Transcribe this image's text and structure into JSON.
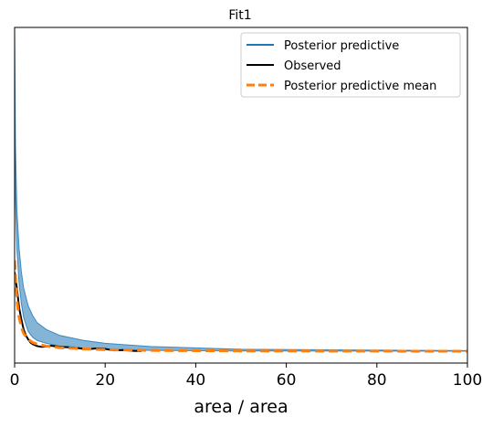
{
  "chart_data": {
    "type": "line",
    "title": "Fit1",
    "xlabel": "area / area",
    "ylabel": "",
    "xlim": [
      0,
      100
    ],
    "ylim": [
      -0.03,
      0.82
    ],
    "x_ticks": [
      "0",
      "20",
      "40",
      "60",
      "80",
      "100"
    ],
    "x_tick_values": [
      0,
      20,
      40,
      60,
      80,
      100
    ],
    "y_ticks_visible": false,
    "grid": false,
    "legend": {
      "placement": "top-right",
      "entries": [
        {
          "label": "Posterior predictive",
          "color": "#1f77b4",
          "style": "solid"
        },
        {
          "label": "Observed",
          "color": "#000000",
          "style": "solid"
        },
        {
          "label": "Posterior predictive mean",
          "color": "#ff7f0e",
          "style": "dashed"
        }
      ]
    },
    "series": [
      {
        "name": "Posterior predictive",
        "color": "#1f77b4",
        "style": "band",
        "x": [
          0,
          0.2,
          0.5,
          1,
          1.5,
          2,
          3,
          4,
          5,
          7,
          10,
          15,
          20,
          30,
          50,
          100
        ],
        "lower": [
          0.55,
          0.38,
          0.26,
          0.17,
          0.12,
          0.085,
          0.05,
          0.035,
          0.027,
          0.02,
          0.013,
          0.008,
          0.005,
          0.002,
          0.0006,
          0.0
        ],
        "upper": [
          0.82,
          0.52,
          0.36,
          0.26,
          0.2,
          0.16,
          0.115,
          0.09,
          0.072,
          0.055,
          0.04,
          0.028,
          0.02,
          0.012,
          0.005,
          0.0015
        ]
      },
      {
        "name": "Observed",
        "color": "#000000",
        "style": "solid",
        "x": [
          0,
          0.5,
          1,
          1.5,
          2,
          2.5,
          3,
          3.5,
          4,
          5,
          6,
          7,
          8,
          10,
          12,
          14,
          16,
          18,
          20,
          22,
          24,
          26,
          28
        ],
        "y": [
          0.2,
          0.16,
          0.11,
          0.08,
          0.055,
          0.04,
          0.03,
          0.022,
          0.018,
          0.013,
          0.011,
          0.012,
          0.014,
          0.011,
          0.01,
          0.008,
          0.005,
          0.007,
          0.006,
          0.002,
          0.003,
          0.001,
          0.0005
        ]
      },
      {
        "name": "Posterior predictive mean",
        "color": "#ff7f0e",
        "style": "dashed",
        "x": [
          0,
          0.3,
          0.6,
          1,
          1.5,
          2,
          3,
          4,
          5,
          7,
          10,
          15,
          20,
          30,
          50,
          100
        ],
        "y": [
          0.23,
          0.17,
          0.12,
          0.085,
          0.06,
          0.045,
          0.03,
          0.022,
          0.018,
          0.013,
          0.009,
          0.006,
          0.004,
          0.002,
          0.0008,
          0.0
        ]
      }
    ]
  }
}
